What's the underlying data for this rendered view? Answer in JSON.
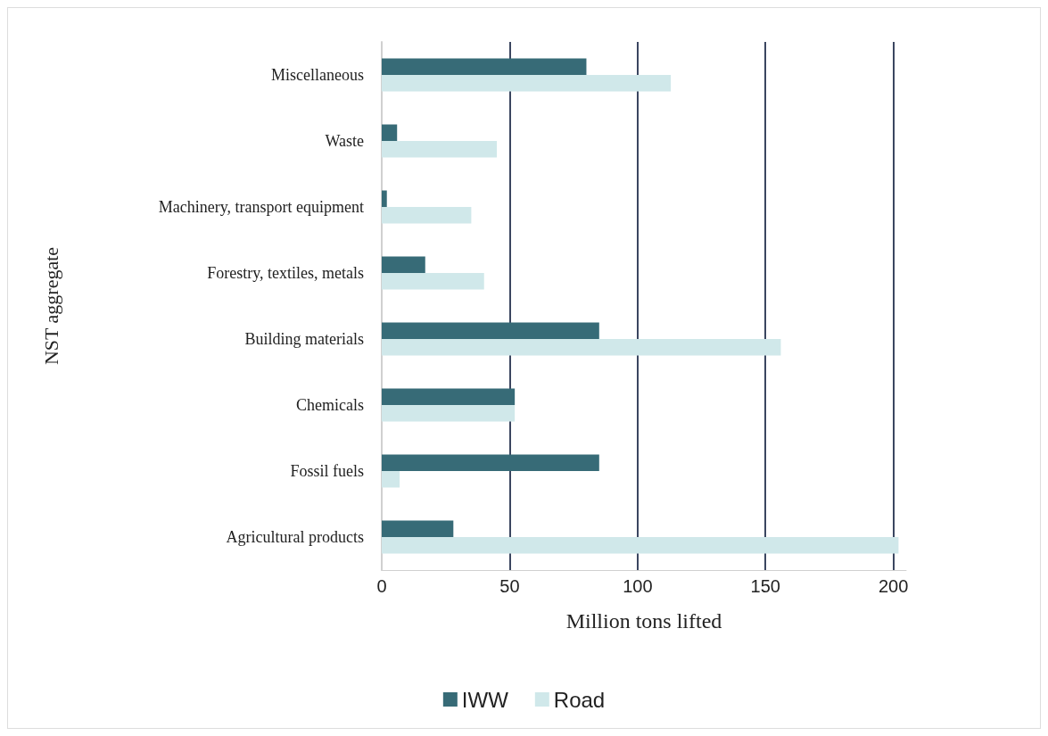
{
  "chart_data": {
    "type": "bar",
    "orientation": "horizontal",
    "xlabel": "Million tons lifted",
    "ylabel": "NST aggregate",
    "categories": [
      "Miscellaneous",
      "Waste",
      "Machinery, transport equipment",
      "Forestry, textiles, metals",
      "Building materials",
      "Chemicals",
      "Fossil fuels",
      "Agricultural products"
    ],
    "series": [
      {
        "name": "IWW",
        "color": "#376b77",
        "values": [
          80,
          6,
          2,
          17,
          85,
          52,
          85,
          28
        ]
      },
      {
        "name": "Road",
        "color": "#d0e8ea",
        "values": [
          113,
          45,
          35,
          40,
          156,
          52,
          7,
          202
        ]
      }
    ],
    "xlim": [
      0,
      205
    ],
    "xticks": [
      0,
      50,
      100,
      150,
      200
    ],
    "grid": "x",
    "legend": "bottom"
  }
}
